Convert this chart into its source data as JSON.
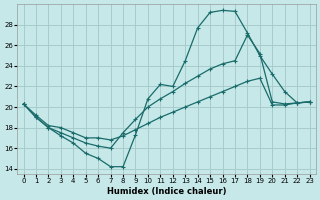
{
  "xlabel": "Humidex (Indice chaleur)",
  "bg_color": "#c6e8e8",
  "grid_color": "#a8cccc",
  "line_color": "#1a6b6b",
  "xlim": [
    -0.5,
    23.5
  ],
  "ylim": [
    13.5,
    30.0
  ],
  "xticks": [
    0,
    1,
    2,
    3,
    4,
    5,
    6,
    7,
    8,
    9,
    10,
    11,
    12,
    13,
    14,
    15,
    16,
    17,
    18,
    19,
    20,
    21,
    22,
    23
  ],
  "yticks": [
    14,
    16,
    18,
    20,
    22,
    24,
    26,
    28
  ],
  "line1_x": [
    0,
    1,
    2,
    3,
    4,
    5,
    6,
    7,
    8,
    9,
    10,
    11,
    12,
    13,
    14,
    15,
    16,
    17,
    18,
    19,
    20,
    21,
    22,
    23
  ],
  "line1_y": [
    20.3,
    19.0,
    18.0,
    17.2,
    16.5,
    15.5,
    15.0,
    14.2,
    14.2,
    17.3,
    20.8,
    22.2,
    22.0,
    24.5,
    27.7,
    29.2,
    29.4,
    29.3,
    27.2,
    25.0,
    23.2,
    21.5,
    20.4,
    20.5
  ],
  "line2_x": [
    0,
    1,
    2,
    3,
    4,
    5,
    6,
    7,
    8,
    9,
    10,
    11,
    12,
    13,
    14,
    15,
    16,
    17,
    18,
    19,
    20,
    21,
    22,
    23
  ],
  "line2_y": [
    20.3,
    19.0,
    18.0,
    17.5,
    17.0,
    16.5,
    16.2,
    16.0,
    17.5,
    18.8,
    20.0,
    20.8,
    21.5,
    22.3,
    23.0,
    23.7,
    24.2,
    24.5,
    27.0,
    25.2,
    20.5,
    20.3,
    20.4,
    20.5
  ],
  "line3_x": [
    0,
    1,
    2,
    3,
    4,
    5,
    6,
    7,
    8,
    9,
    10,
    11,
    12,
    13,
    14,
    15,
    16,
    17,
    18,
    19,
    20,
    21,
    22,
    23
  ],
  "line3_y": [
    20.3,
    19.2,
    18.2,
    18.0,
    17.5,
    17.0,
    17.0,
    16.8,
    17.2,
    17.8,
    18.4,
    19.0,
    19.5,
    20.0,
    20.5,
    21.0,
    21.5,
    22.0,
    22.5,
    22.8,
    20.2,
    20.2,
    20.4,
    20.5
  ]
}
